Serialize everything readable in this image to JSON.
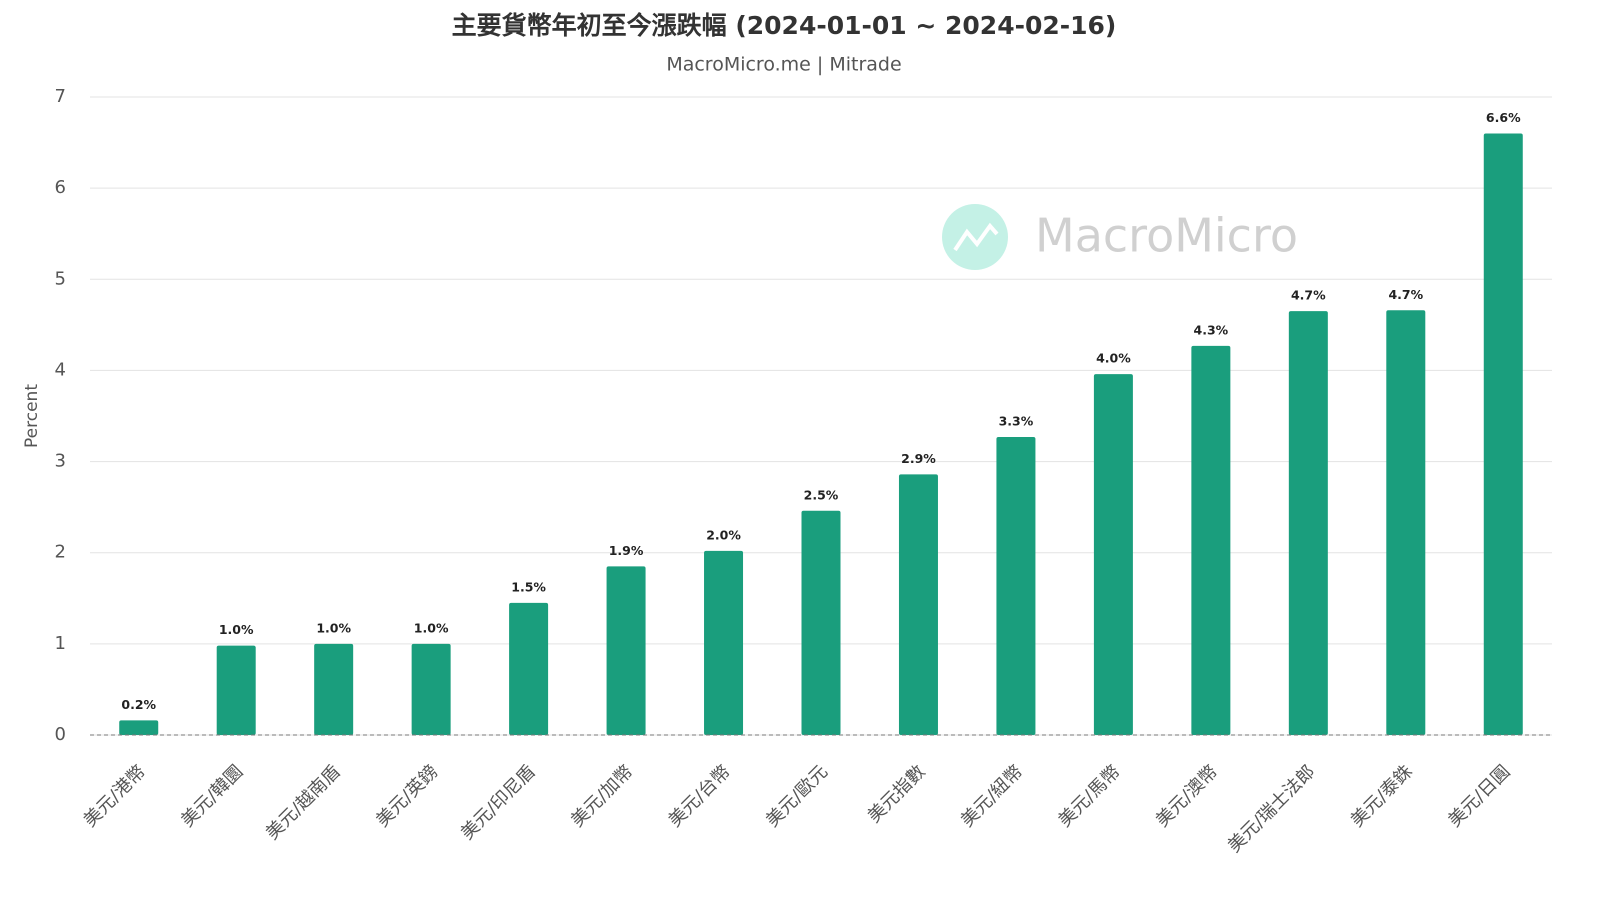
{
  "chart_data": {
    "type": "bar",
    "title": "主要貨幣年初至今漲跌幅 (2024-01-01 ~ 2024-02-16)",
    "subtitle": "MacroMicro.me | Mitrade",
    "watermark": "MacroMicro",
    "y_label": "Percent",
    "categories": [
      "美元/港幣",
      "美元/韓圜",
      "美元/越南盾",
      "美元/英鎊",
      "美元/印尼盾",
      "美元/加幣",
      "美元/台幣",
      "美元/歐元",
      "美元指數",
      "美元/紐幣",
      "美元/馬幣",
      "美元/澳幣",
      "美元/瑞士法郎",
      "美元/泰銖",
      "美元/日圓"
    ],
    "values": [
      0.16,
      0.98,
      1.0,
      1.0,
      1.45,
      1.85,
      2.02,
      2.46,
      2.86,
      3.27,
      3.96,
      4.27,
      4.65,
      4.66,
      6.6
    ],
    "value_labels": [
      "0.2%",
      "1.0%",
      "1.0%",
      "1.0%",
      "1.5%",
      "1.9%",
      "2.0%",
      "2.5%",
      "2.9%",
      "3.3%",
      "4.0%",
      "4.3%",
      "4.7%",
      "4.7%",
      "6.6%"
    ],
    "color": "#1a9e7d",
    "ylim": [
      0,
      7
    ],
    "yticks": [
      0,
      1,
      2,
      3,
      4,
      5,
      6,
      7
    ],
    "grid": true
  }
}
